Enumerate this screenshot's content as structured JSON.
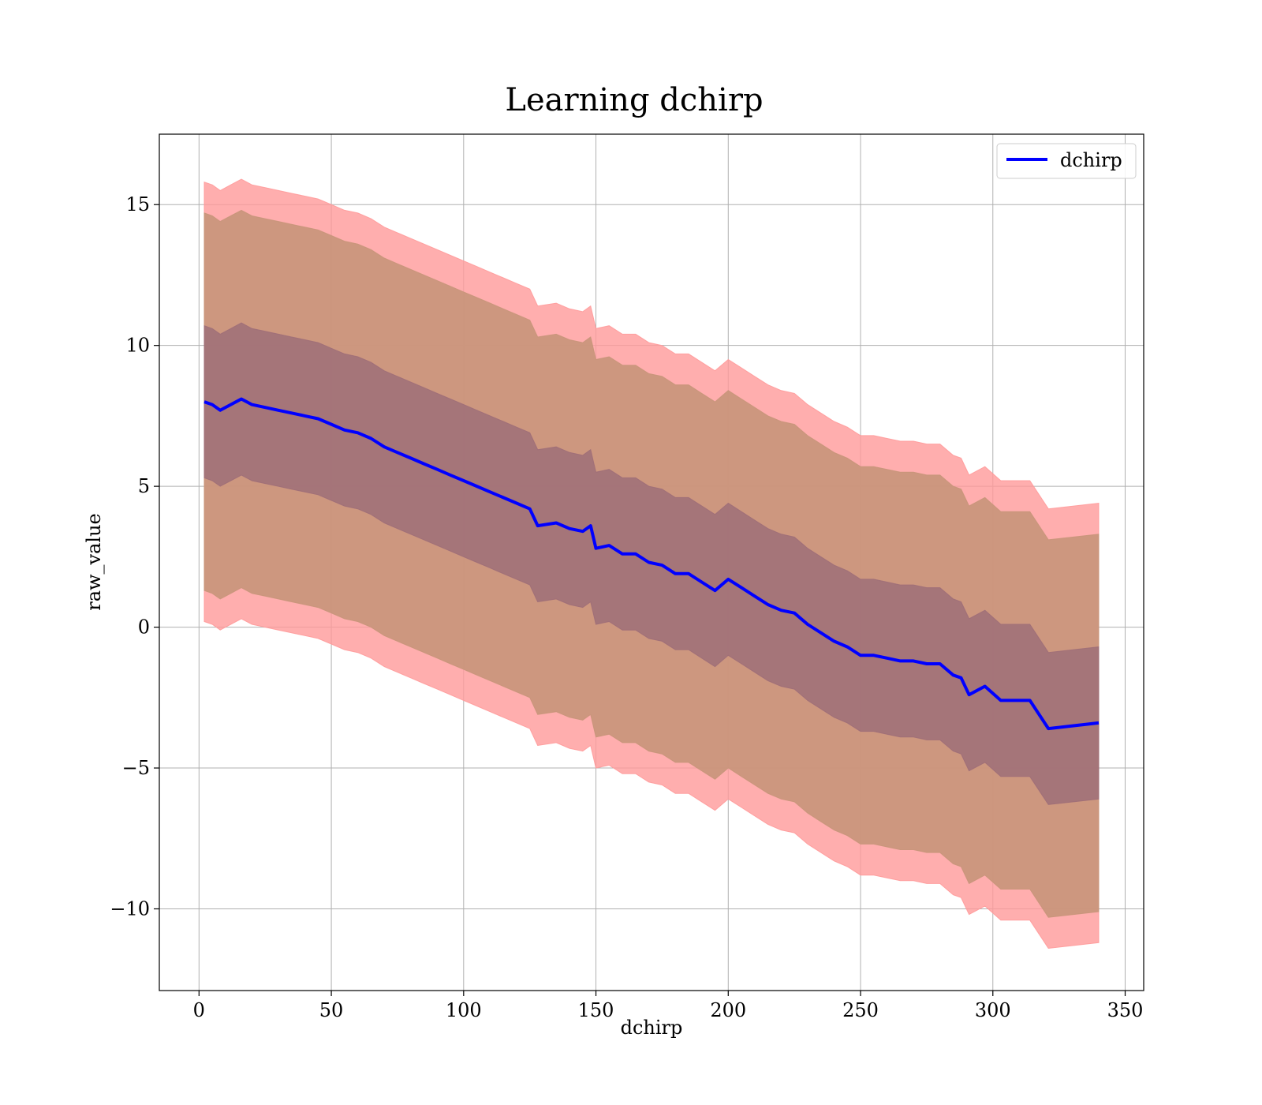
{
  "colors": {
    "mean_line": "#0000ff",
    "outer_band": "#ff9a9a",
    "middle_band": "#c8957a",
    "inner_band": "#9e6e78",
    "grid": "#b0b0b0",
    "axes": "#000000"
  },
  "chart_data": {
    "type": "line",
    "title": "Learning dchirp",
    "xlabel": "dchirp",
    "ylabel": "raw_value",
    "xlim": [
      -15,
      357
    ],
    "ylim": [
      -12.9,
      17.5
    ],
    "xticks": [
      0,
      50,
      100,
      150,
      200,
      250,
      300,
      350
    ],
    "yticks": [
      -10,
      -5,
      0,
      5,
      10,
      15
    ],
    "xtick_labels": [
      "0",
      "50",
      "100",
      "150",
      "200",
      "250",
      "300",
      "350"
    ],
    "ytick_labels": [
      "−10",
      "−5",
      "0",
      "5",
      "10",
      "15"
    ],
    "grid": true,
    "legend_position": "top-right",
    "series": [
      {
        "name": "dchirp",
        "x": [
          2,
          5,
          8,
          12,
          16,
          20,
          25,
          30,
          35,
          40,
          45,
          50,
          55,
          60,
          65,
          70,
          75,
          80,
          85,
          90,
          95,
          100,
          105,
          110,
          115,
          120,
          125,
          128,
          135,
          140,
          145,
          148,
          150,
          155,
          160,
          165,
          170,
          175,
          180,
          185,
          190,
          195,
          200,
          205,
          210,
          215,
          220,
          225,
          230,
          235,
          240,
          245,
          250,
          255,
          260,
          265,
          270,
          275,
          280,
          285,
          288,
          291,
          297,
          303,
          314,
          321,
          340
        ],
        "y": [
          8.0,
          7.9,
          7.7,
          7.9,
          8.1,
          7.9,
          7.8,
          7.7,
          7.6,
          7.5,
          7.4,
          7.2,
          7.0,
          6.9,
          6.7,
          6.4,
          6.2,
          6.0,
          5.8,
          5.6,
          5.4,
          5.2,
          5.0,
          4.8,
          4.6,
          4.4,
          4.2,
          3.6,
          3.7,
          3.5,
          3.4,
          3.6,
          2.8,
          2.9,
          2.6,
          2.6,
          2.3,
          2.2,
          1.9,
          1.9,
          1.6,
          1.3,
          1.7,
          1.4,
          1.1,
          0.8,
          0.6,
          0.5,
          0.1,
          -0.2,
          -0.5,
          -0.7,
          -1.0,
          -1.0,
          -1.1,
          -1.2,
          -1.2,
          -1.3,
          -1.3,
          -1.7,
          -1.8,
          -2.4,
          -2.1,
          -2.6,
          -2.6,
          -3.6,
          -3.4
        ]
      }
    ],
    "bands": [
      {
        "lower_offset": -7.8,
        "upper_offset": 7.8
      },
      {
        "lower_offset": -6.7,
        "upper_offset": 6.7
      },
      {
        "lower_offset": -2.7,
        "upper_offset": 2.7
      }
    ]
  }
}
